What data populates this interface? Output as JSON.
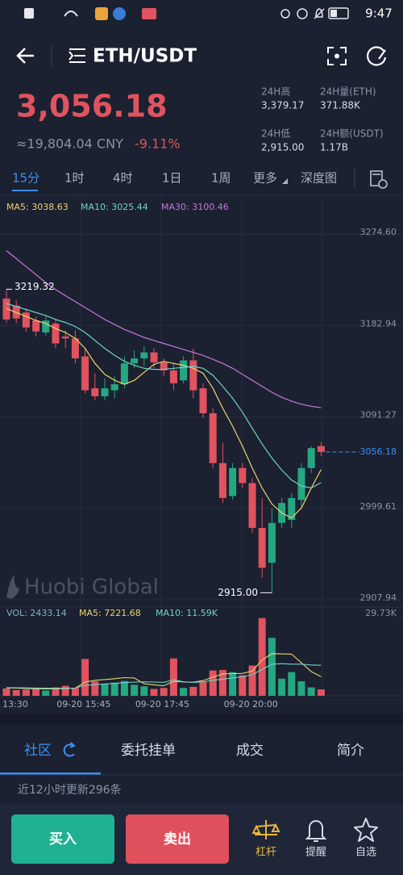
{
  "status_bar": {
    "time": "9:47"
  },
  "header": {
    "title": "ETH/USDT"
  },
  "ticker": {
    "price": "3,056.18",
    "cny": "≈19,804.04 CNY",
    "change": "-9.11%",
    "stats": [
      {
        "label": "24H高",
        "value": "3,379.17"
      },
      {
        "label": "24H量(ETH)",
        "value": "371.88K"
      },
      {
        "label": "24H低",
        "value": "2,915.00"
      },
      {
        "label": "24H额(USDT)",
        "value": "1.17B"
      }
    ]
  },
  "periods": [
    "15分",
    "1时",
    "4时",
    "1日",
    "1周",
    "更多",
    "深度图"
  ],
  "chart_data": [
    {
      "type": "candlestick",
      "categories": [
        "13:30",
        null,
        null,
        null,
        null,
        null,
        null,
        null,
        null,
        "09-20 15:45",
        null,
        null,
        null,
        null,
        null,
        null,
        null,
        "09-20 17:45",
        null,
        null,
        null,
        null,
        null,
        null,
        null,
        null,
        "09-20 20:00",
        null,
        null,
        null,
        null,
        null,
        null
      ],
      "open": [
        3210,
        3203,
        3196,
        3188,
        3176,
        3185,
        3172,
        3170,
        3152,
        3120,
        3112,
        3118,
        3124,
        3145,
        3150,
        3156,
        3146,
        3138,
        3128,
        3148,
        3120,
        3095,
        3045,
        3012,
        3040,
        3025,
        2980,
        2945,
        2985,
        2988,
        3008,
        3040,
        3062
      ],
      "high": [
        3219.32,
        3208,
        3200,
        3192,
        3192,
        3190,
        3178,
        3178,
        3160,
        3135,
        3130,
        3132,
        3152,
        3158,
        3162,
        3160,
        3150,
        3145,
        3152,
        3160,
        3125,
        3100,
        3065,
        3045,
        3045,
        3030,
        3010,
        3000,
        3010,
        3015,
        3045,
        3062,
        3066
      ],
      "low": [
        3186,
        3185,
        3177,
        3172,
        3173,
        3160,
        3160,
        3145,
        3115,
        3108,
        3108,
        3110,
        3120,
        3140,
        3142,
        3140,
        3132,
        3118,
        3125,
        3110,
        3090,
        3040,
        3005,
        3008,
        3020,
        2975,
        2930,
        2915,
        2980,
        2980,
        3000,
        3035,
        3052
      ],
      "close": [
        3189,
        3190,
        3181,
        3177,
        3188,
        3165,
        3170,
        3150,
        3118,
        3112,
        3120,
        3124,
        3145,
        3150,
        3156,
        3146,
        3138,
        3125,
        3148,
        3118,
        3095,
        3045,
        3010,
        3040,
        3025,
        2980,
        2940,
        2985,
        3005,
        3010,
        3040,
        3060,
        3056.18
      ],
      "color_up": "#25a782",
      "color_down": "#e0535f",
      "ylim": [
        2902.3,
        3313.5
      ],
      "yticks": [
        2907.94,
        2999.61,
        3091.27,
        3182.94,
        {
          "value": 3274.6,
          "label": "3274.60"
        }
      ],
      "grid": true,
      "series": [
        {
          "name": "MA5: 3038.63",
          "color": "#f0d36c",
          "values": [
            3200,
            3196,
            3192,
            3188,
            3185,
            3180,
            3176,
            3170,
            3160,
            3145,
            3134,
            3128,
            3124,
            3128,
            3136,
            3144,
            3147,
            3145,
            3143,
            3140,
            3135,
            3120,
            3100,
            3082,
            3062,
            3040,
            3020,
            3004,
            2995,
            2990,
            3000,
            3020,
            3038.63
          ]
        },
        {
          "name": "MA10: 3025.44",
          "color": "#6dd4c8",
          "values": [
            3205,
            3202,
            3199,
            3196,
            3193,
            3189,
            3186,
            3182,
            3176,
            3168,
            3160,
            3153,
            3147,
            3143,
            3140,
            3139,
            3139,
            3140,
            3141,
            3142,
            3140,
            3133,
            3122,
            3110,
            3096,
            3080,
            3064,
            3050,
            3038,
            3028,
            3022,
            3020,
            3025.44
          ]
        },
        {
          "name": "MA30: 3100.46",
          "color": "#c678dd",
          "values": [
            3258,
            3250,
            3242,
            3234,
            3226,
            3219,
            3213,
            3207,
            3201,
            3195,
            3189,
            3184,
            3179,
            3175,
            3171,
            3168,
            3165,
            3162,
            3159,
            3156,
            3153,
            3149,
            3145,
            3140,
            3134,
            3128,
            3122,
            3116,
            3111,
            3107,
            3104,
            3102,
            3100.46
          ]
        }
      ],
      "watermark": "Huobi Global",
      "high_label": {
        "value": 3219.32,
        "label": "3219.32"
      },
      "low_label": {
        "value": 2915,
        "label": "2915.00"
      },
      "last_label": {
        "value": 3056.18,
        "label": "3056.18"
      }
    },
    {
      "type": "bar",
      "name": "VOL: 2433.14",
      "color": "#7fb2c9",
      "values": [
        2800,
        2200,
        2400,
        2600,
        2000,
        3200,
        3800,
        3000,
        14000,
        5500,
        4500,
        5000,
        5600,
        4200,
        3600,
        2600,
        3000,
        14200,
        3000,
        3400,
        5200,
        9600,
        9800,
        9000,
        7800,
        11500,
        29500,
        22000,
        6500,
        9000,
        5500,
        3200,
        2433.14
      ],
      "ylim": [
        0,
        29730
      ],
      "yticks": [
        {
          "value": 29730,
          "label": "29.73K"
        }
      ],
      "series": [
        {
          "name": "MA5: 7221.68",
          "color": "#f0d36c",
          "values": [
            3000,
            2900,
            2800,
            2700,
            2600,
            2680,
            2800,
            2920,
            5200,
            5900,
            6160,
            6500,
            6900,
            6760,
            4580,
            4180,
            3800,
            5480,
            5280,
            5160,
            5800,
            7080,
            8320,
            8440,
            8500,
            9380,
            13620,
            16000,
            15900,
            15800,
            12500,
            9200,
            7221.68
          ]
        },
        {
          "name": "MA10: 11.59K",
          "color": "#6dd4c8",
          "values": [
            3100,
            3050,
            3000,
            2950,
            2900,
            2850,
            2900,
            2950,
            4000,
            4200,
            4500,
            4700,
            5000,
            5200,
            5300,
            5200,
            5100,
            6100,
            5300,
            5100,
            5300,
            5900,
            6300,
            6800,
            7200,
            8000,
            10000,
            12000,
            12200,
            12000,
            12000,
            11700,
            11590
          ]
        }
      ]
    }
  ],
  "tabs": [
    "社区",
    "委托挂单",
    "成交",
    "简介"
  ],
  "feed_notice": "近12小时更新296条",
  "actions": {
    "buy": "买入",
    "sell": "卖出",
    "tools": [
      "杠杆",
      "提醒",
      "自选"
    ]
  }
}
